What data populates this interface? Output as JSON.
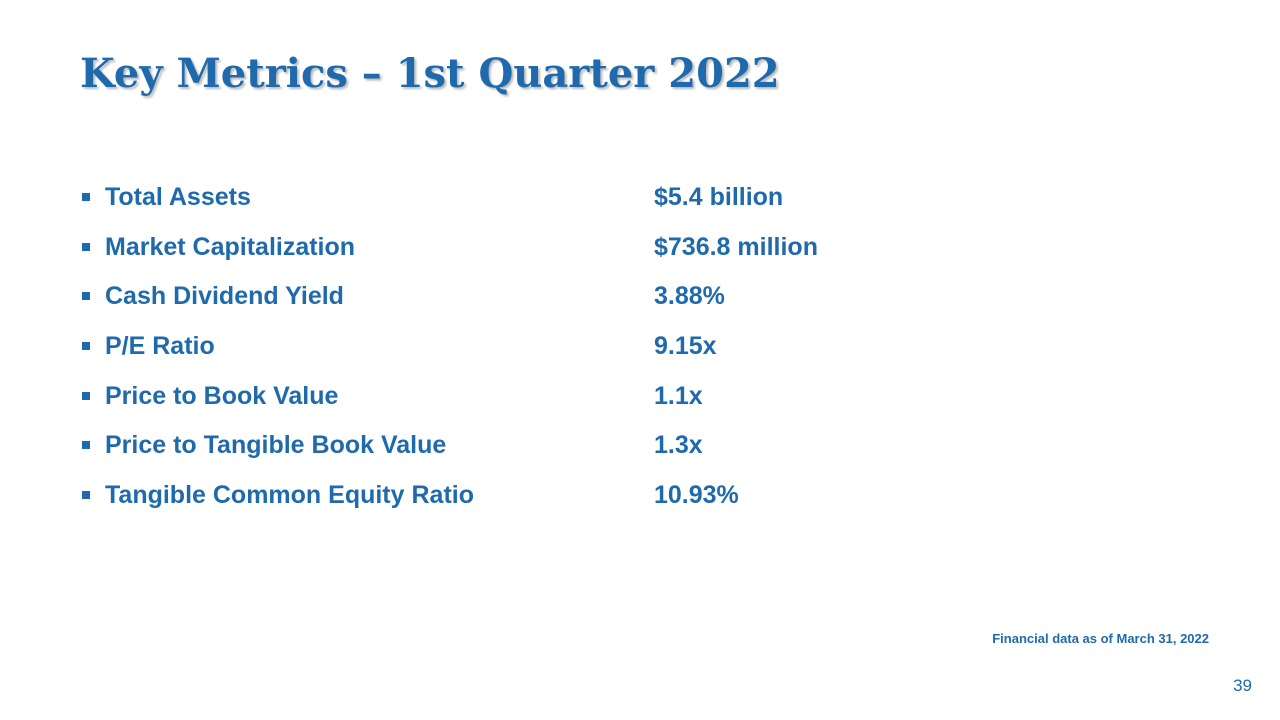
{
  "slide": {
    "title": "Key Metrics – 1st Quarter 2022",
    "metrics": [
      {
        "label": "Total Assets",
        "value": "$5.4 billion"
      },
      {
        "label": "Market Capitalization",
        "value": "$736.8 million"
      },
      {
        "label": "Cash Dividend Yield",
        "value": "3.88%"
      },
      {
        "label": "P/E Ratio",
        "value": "9.15x"
      },
      {
        "label": "Price to Book Value",
        "value": "1.1x"
      },
      {
        "label": "Price to Tangible Book Value",
        "value": "1.3x"
      },
      {
        "label": "Tangible Common Equity Ratio",
        "value": "10.93%"
      }
    ],
    "footnote": "Financial data as of March 31, 2022",
    "page_number": "39"
  },
  "colors": {
    "text": "#1f6aad",
    "background": "#ffffff"
  }
}
